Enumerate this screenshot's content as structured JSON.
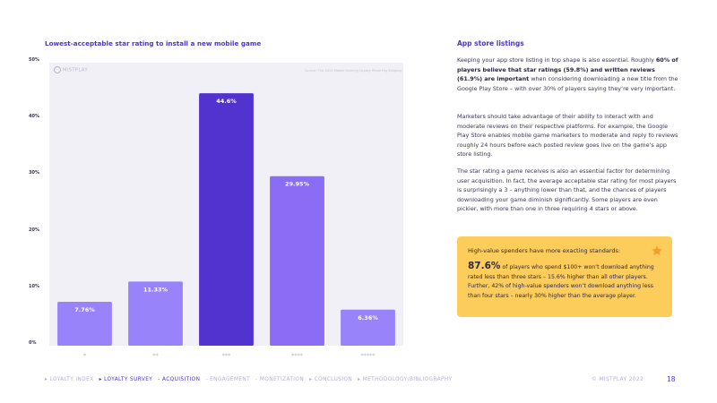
{
  "chart_data": {
    "type": "bar",
    "title": "Lowest-acceptable star rating to install a new mobile game",
    "categories": [
      "*",
      "**",
      "***",
      "****",
      "*****"
    ],
    "values": [
      7.76,
      11.33,
      44.6,
      29.95,
      6.36
    ],
    "data_labels": [
      "7.76%",
      "11.33%",
      "44.6%",
      "29.95%",
      "6.36%"
    ],
    "highlight_index": 2,
    "bar_colors": [
      "#9883fa",
      "#9883fa",
      "#5233cf",
      "#8b6cf5",
      "#9883fa"
    ],
    "y_ticks": [
      0,
      10,
      20,
      30,
      40,
      50
    ],
    "y_tick_labels": [
      "0%",
      "10%",
      "20%",
      "30%",
      "40%",
      "50%"
    ],
    "ylim": [
      0,
      50
    ],
    "xlabel": "",
    "ylabel": "",
    "watermark": "MISTPLAY",
    "source_note": "Source: The 2022 Mobile Gaming Loyalty Report by Mistplay"
  },
  "sidebar": {
    "title": "App store listings",
    "p1_a": "Keeping your app store listing in top shape is also essential. Roughly ",
    "p1_b": "60% of players believe that star ratings (59.8%) and written reviews (61.9%) are important",
    "p1_c": " when considering downloading a new title from the Google Play Store – with over 30% of players saying they’re very important.",
    "p2": "Marketers should take advantage of their ability to interact with and moderate reviews on their respective platforms. For example, the Google Play Store enables mobile game marketers to moderate and reply to reviews roughly 24 hours before each posted review goes live on the game’s app store listing.",
    "p3": "The star rating a game receives is also an essential factor for determining user acquisition. In fact, the average acceptable star rating for most players is surprisingly a 3 – anything lower than that, and the chances of players downloading your game diminish significantly. Some players are even pickier, with more than one in three requiring 4 stars or above."
  },
  "callout": {
    "heading": "High-value spenders have more exacting standards:",
    "stat": "87.6%",
    "body": " of players who spend $100+ won’t download anything rated less than three stars – 15.6% higher than all other players. Further, 42% of high-value spenders won’t download anything less than four stars – nearly 30% higher than the average player."
  },
  "footer": {
    "nav": [
      {
        "label": "▸ LOYALTY INDEX",
        "active": false
      },
      {
        "label": "▸ LOYALTY SURVEY",
        "active": true
      },
      {
        "label": "- ACQUISITION",
        "active": true
      },
      {
        "label": "- ENGAGEMENT",
        "active": false
      },
      {
        "label": "- MONETIZATION",
        "active": false
      },
      {
        "label": "▸ CONCLUSION",
        "active": false
      },
      {
        "label": "▸ METHODOLOGY/BIBLIOGRAPHY",
        "active": false
      }
    ],
    "copyright": "© MISTPLAY 2022",
    "page_number": "18"
  },
  "colors": {
    "accent": "#4a36c9",
    "callout_bg": "#fdcd5c",
    "star": "#f0a12b"
  }
}
